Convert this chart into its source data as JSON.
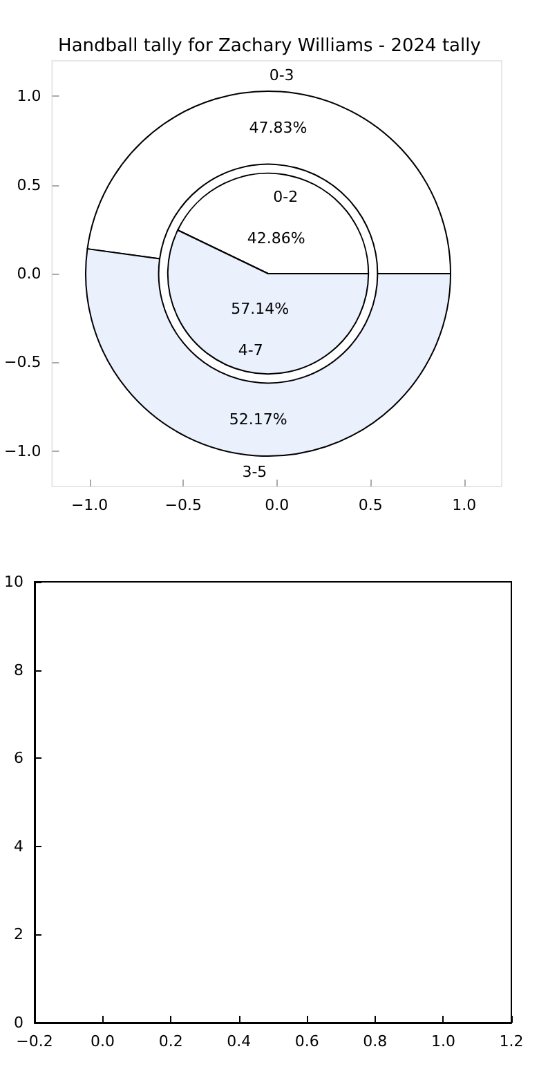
{
  "chart_data": [
    {
      "type": "scatter",
      "title": "Handball tally for Zachary Williams - 2024 tally",
      "xlim": [
        -1.2,
        1.2
      ],
      "ylim": [
        -1.2,
        1.2
      ],
      "xticks": [
        {
          "value": -1,
          "label": "−1.0"
        },
        {
          "value": -0.5,
          "label": "−0.5"
        },
        {
          "value": 0,
          "label": "0.0"
        },
        {
          "value": 0.5,
          "label": "0.5"
        },
        {
          "value": 1,
          "label": "1.0"
        }
      ],
      "yticks": [
        {
          "value": -1,
          "label": "−1.0"
        },
        {
          "value": -0.5,
          "label": "−0.5"
        },
        {
          "value": 0,
          "label": "0.0"
        },
        {
          "value": 0.5,
          "label": "0.5"
        },
        {
          "value": 1,
          "label": "1.0"
        }
      ]
    },
    {
      "type": "donut",
      "categories": [
        "0-3",
        "3-5"
      ],
      "values": [
        47.83,
        52.17
      ],
      "value_labels": [
        "47.83%",
        "52.17%"
      ],
      "colors": [
        "#ffffff",
        "#eaf0fc"
      ]
    },
    {
      "type": "pie",
      "categories": [
        "0-2",
        "4-7"
      ],
      "values": [
        42.86,
        57.14
      ],
      "value_labels": [
        "42.86%",
        "57.14%"
      ],
      "colors": [
        "#ffffff",
        "#eaf0fc"
      ]
    },
    {
      "type": "scatter",
      "xlim": [
        -0.2,
        1.2
      ],
      "ylim": [
        0,
        10
      ],
      "xticks": [
        {
          "value": -0.2,
          "label": "−0.2"
        },
        {
          "value": 0,
          "label": "0.0"
        },
        {
          "value": 0.2,
          "label": "0.2"
        },
        {
          "value": 0.4,
          "label": "0.4"
        },
        {
          "value": 0.6,
          "label": "0.6"
        },
        {
          "value": 0.8,
          "label": "0.8"
        },
        {
          "value": 1,
          "label": "1.0"
        },
        {
          "value": 1.2,
          "label": "1.2"
        }
      ],
      "yticks": [
        0,
        2,
        4,
        6,
        8,
        10
      ]
    }
  ]
}
